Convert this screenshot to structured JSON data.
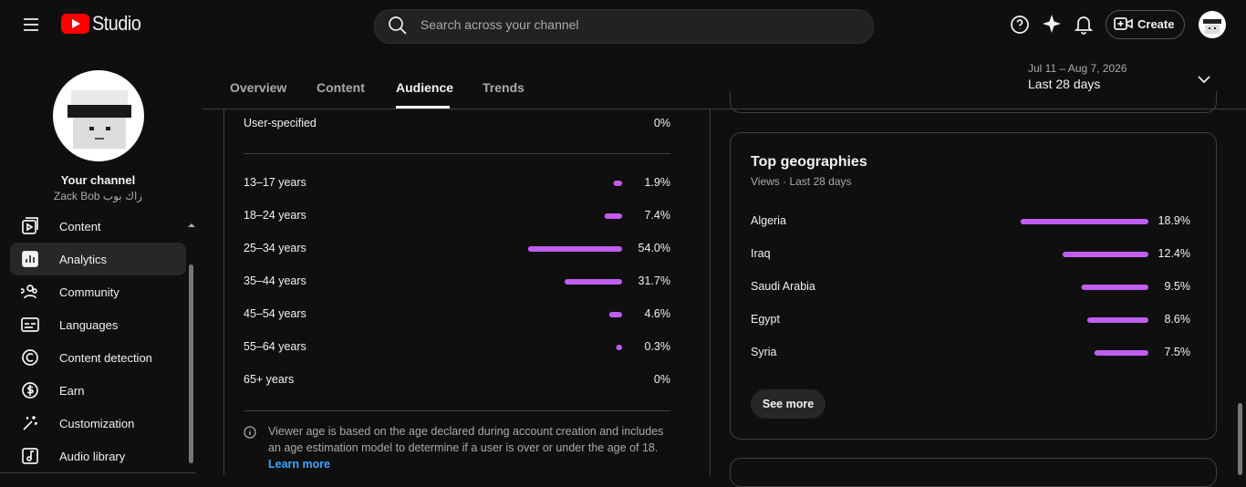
{
  "header": {
    "logo": "Studio",
    "search_placeholder": "Search across your channel",
    "create": "Create"
  },
  "sidebar": {
    "channel_title": "Your channel",
    "channel_name": "Zack Bob زاك بوب",
    "nav": [
      "Content",
      "Analytics",
      "Community",
      "Languages",
      "Content detection",
      "Earn",
      "Customization",
      "Audio library"
    ]
  },
  "tabs": [
    "Overview",
    "Content",
    "Audience",
    "Trends"
  ],
  "date_range": {
    "dates": "Jul 11 – Aug 7, 2026",
    "period": "Last 28 days"
  },
  "age": {
    "user_specified": {
      "label": "User-specified",
      "value_label": "0%"
    },
    "rows": [
      {
        "label": "13–17 years",
        "value": 1.9,
        "value_label": "1.9%"
      },
      {
        "label": "18–24 years",
        "value": 7.4,
        "value_label": "7.4%"
      },
      {
        "label": "25–34 years",
        "value": 54.0,
        "value_label": "54.0%"
      },
      {
        "label": "35–44 years",
        "value": 31.7,
        "value_label": "31.7%"
      },
      {
        "label": "45–54 years",
        "value": 4.6,
        "value_label": "4.6%"
      },
      {
        "label": "55–64 years",
        "value": 0.3,
        "value_label": "0.3%"
      },
      {
        "label": "65+ years",
        "value": 0,
        "value_label": "0%"
      }
    ],
    "note": [
      "Viewer age is based on the age declared during account creation and includes",
      "an age estimation model to determine if a user is over or under the age of 18."
    ],
    "learn_more": "Learn more"
  },
  "geographies": {
    "title": "Top geographies",
    "subtitle": "Views · Last 28 days",
    "rows": [
      {
        "label": "Algeria",
        "value": 18.9,
        "value_label": "18.9%"
      },
      {
        "label": "Iraq",
        "value": 12.4,
        "value_label": "12.4%"
      },
      {
        "label": "Saudi Arabia",
        "value": 9.5,
        "value_label": "9.5%"
      },
      {
        "label": "Egypt",
        "value": 8.6,
        "value_label": "8.6%"
      },
      {
        "label": "Syria",
        "value": 7.5,
        "value_label": "7.5%"
      }
    ],
    "see_more": "See more"
  }
}
